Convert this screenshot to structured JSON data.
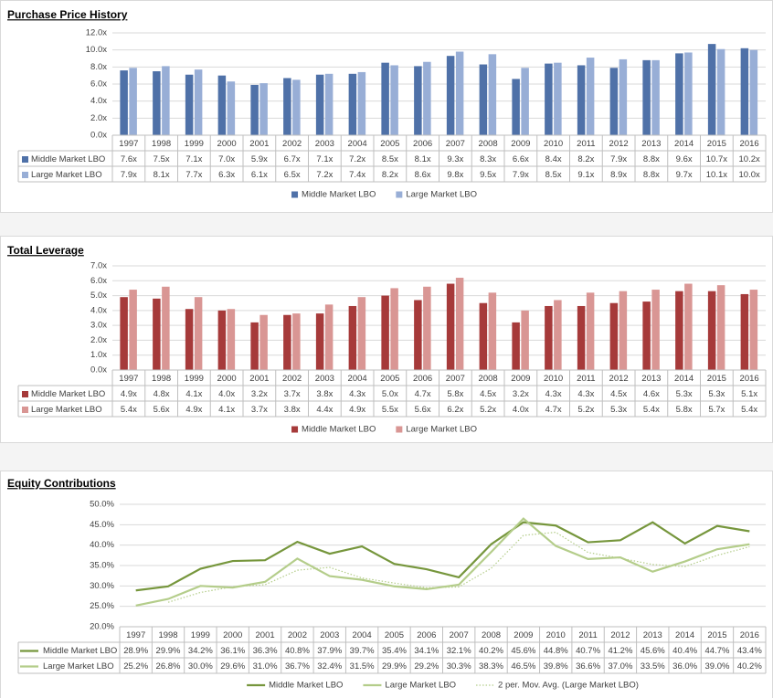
{
  "chart_data": [
    {
      "type": "bar",
      "title": "Purchase Price History",
      "categories": [
        "1997",
        "1998",
        "1999",
        "2000",
        "2001",
        "2002",
        "2003",
        "2004",
        "2005",
        "2006",
        "2007",
        "2008",
        "2009",
        "2010",
        "2011",
        "2012",
        "2013",
        "2014",
        "2015",
        "2016"
      ],
      "series": [
        {
          "name": "Middle Market LBO",
          "color": "#4f71a8",
          "values": [
            7.6,
            7.5,
            7.1,
            7.0,
            5.9,
            6.7,
            7.1,
            7.2,
            8.5,
            8.1,
            9.3,
            8.3,
            6.6,
            8.4,
            8.2,
            7.9,
            8.8,
            9.6,
            10.7,
            10.2
          ],
          "value_labels": [
            "7.6x",
            "7.5x",
            "7.1x",
            "7.0x",
            "5.9x",
            "6.7x",
            "7.1x",
            "7.2x",
            "8.5x",
            "8.1x",
            "9.3x",
            "8.3x",
            "6.6x",
            "8.4x",
            "8.2x",
            "7.9x",
            "8.8x",
            "9.6x",
            "10.7x",
            "10.2x"
          ]
        },
        {
          "name": "Large Market LBO",
          "color": "#98aed6",
          "values": [
            7.9,
            8.1,
            7.7,
            6.3,
            6.1,
            6.5,
            7.2,
            7.4,
            8.2,
            8.6,
            9.8,
            9.5,
            7.9,
            8.5,
            9.1,
            8.9,
            8.8,
            9.7,
            10.1,
            10.0
          ],
          "value_labels": [
            "7.9x",
            "8.1x",
            "7.7x",
            "6.3x",
            "6.1x",
            "6.5x",
            "7.2x",
            "7.4x",
            "8.2x",
            "8.6x",
            "9.8x",
            "9.5x",
            "7.9x",
            "8.5x",
            "9.1x",
            "8.9x",
            "8.8x",
            "9.7x",
            "10.1x",
            "10.0x"
          ]
        }
      ],
      "ylim": [
        0,
        12
      ],
      "yticks": [
        {
          "value": 0,
          "label": "0.0x"
        },
        {
          "value": 2,
          "label": "2.0x"
        },
        {
          "value": 4,
          "label": "4.0x"
        },
        {
          "value": 6,
          "label": "6.0x"
        },
        {
          "value": 8,
          "label": "8.0x"
        },
        {
          "value": 10,
          "label": "10.0x"
        },
        {
          "value": 12,
          "label": "12.0x"
        }
      ],
      "grid": true
    },
    {
      "type": "bar",
      "title": "Total Leverage",
      "categories": [
        "1997",
        "1998",
        "1999",
        "2000",
        "2001",
        "2002",
        "2003",
        "2004",
        "2005",
        "2006",
        "2007",
        "2008",
        "2009",
        "2010",
        "2011",
        "2012",
        "2013",
        "2014",
        "2015",
        "2016"
      ],
      "series": [
        {
          "name": "Middle Market LBO",
          "color": "#a63a3a",
          "values": [
            4.9,
            4.8,
            4.1,
            4.0,
            3.2,
            3.7,
            3.8,
            4.3,
            5.0,
            4.7,
            5.8,
            4.5,
            3.2,
            4.3,
            4.3,
            4.5,
            4.6,
            5.3,
            5.3,
            5.1
          ],
          "value_labels": [
            "4.9x",
            "4.8x",
            "4.1x",
            "4.0x",
            "3.2x",
            "3.7x",
            "3.8x",
            "4.3x",
            "5.0x",
            "4.7x",
            "5.8x",
            "4.5x",
            "3.2x",
            "4.3x",
            "4.3x",
            "4.5x",
            "4.6x",
            "5.3x",
            "5.3x",
            "5.1x"
          ]
        },
        {
          "name": "Large Market LBO",
          "color": "#d99694",
          "values": [
            5.4,
            5.6,
            4.9,
            4.1,
            3.7,
            3.8,
            4.4,
            4.9,
            5.5,
            5.6,
            6.2,
            5.2,
            4.0,
            4.7,
            5.2,
            5.3,
            5.4,
            5.8,
            5.7,
            5.4
          ],
          "value_labels": [
            "5.4x",
            "5.6x",
            "4.9x",
            "4.1x",
            "3.7x",
            "3.8x",
            "4.4x",
            "4.9x",
            "5.5x",
            "5.6x",
            "6.2x",
            "5.2x",
            "4.0x",
            "4.7x",
            "5.2x",
            "5.3x",
            "5.4x",
            "5.8x",
            "5.7x",
            "5.4x"
          ]
        }
      ],
      "ylim": [
        0,
        7
      ],
      "yticks": [
        {
          "value": 0,
          "label": "0.0x"
        },
        {
          "value": 1,
          "label": "1.0x"
        },
        {
          "value": 2,
          "label": "2.0x"
        },
        {
          "value": 3,
          "label": "3.0x"
        },
        {
          "value": 4,
          "label": "4.0x"
        },
        {
          "value": 5,
          "label": "5.0x"
        },
        {
          "value": 6,
          "label": "6.0x"
        },
        {
          "value": 7,
          "label": "7.0x"
        }
      ],
      "grid": true
    },
    {
      "type": "line",
      "title": "Equity Contributions",
      "categories": [
        "1997",
        "1998",
        "1999",
        "2000",
        "2001",
        "2002",
        "2003",
        "2004",
        "2005",
        "2006",
        "2007",
        "2008",
        "2009",
        "2010",
        "2011",
        "2012",
        "2013",
        "2014",
        "2015",
        "2016"
      ],
      "series": [
        {
          "name": "Middle Market LBO",
          "color": "#76963c",
          "line_style": "solid",
          "values": [
            28.9,
            29.9,
            34.2,
            36.1,
            36.3,
            40.8,
            37.9,
            39.7,
            35.4,
            34.1,
            32.1,
            40.2,
            45.6,
            44.8,
            40.7,
            41.2,
            45.6,
            40.4,
            44.7,
            43.4
          ],
          "value_labels": [
            "28.9%",
            "29.9%",
            "34.2%",
            "36.1%",
            "36.3%",
            "40.8%",
            "37.9%",
            "39.7%",
            "35.4%",
            "34.1%",
            "32.1%",
            "40.2%",
            "45.6%",
            "44.8%",
            "40.7%",
            "41.2%",
            "45.6%",
            "40.4%",
            "44.7%",
            "43.4%"
          ]
        },
        {
          "name": "Large Market LBO",
          "color": "#b4cd8a",
          "line_style": "solid",
          "values": [
            25.2,
            26.8,
            30.0,
            29.6,
            31.0,
            36.7,
            32.4,
            31.5,
            29.9,
            29.2,
            30.3,
            38.3,
            46.5,
            39.8,
            36.6,
            37.0,
            33.5,
            36.0,
            39.0,
            40.2
          ],
          "value_labels": [
            "25.2%",
            "26.8%",
            "30.0%",
            "29.6%",
            "31.0%",
            "36.7%",
            "32.4%",
            "31.5%",
            "29.9%",
            "29.2%",
            "30.3%",
            "38.3%",
            "46.5%",
            "39.8%",
            "36.6%",
            "37.0%",
            "33.5%",
            "36.0%",
            "39.0%",
            "40.2%"
          ]
        },
        {
          "name": "2 per. Mov. Avg. (Large Market LBO)",
          "color": "#b4cd8a",
          "line_style": "dotted",
          "values": [
            null,
            26.0,
            28.4,
            29.8,
            30.3,
            33.85,
            34.55,
            31.95,
            30.7,
            29.55,
            29.75,
            34.3,
            42.4,
            43.15,
            38.2,
            36.8,
            35.25,
            34.75,
            37.5,
            39.6
          ]
        }
      ],
      "ylim": [
        20,
        50
      ],
      "yticks": [
        {
          "value": 20,
          "label": "20.0%"
        },
        {
          "value": 25,
          "label": "25.0%"
        },
        {
          "value": 30,
          "label": "30.0%"
        },
        {
          "value": 35,
          "label": "35.0%"
        },
        {
          "value": 40,
          "label": "40.0%"
        },
        {
          "value": 45,
          "label": "45.0%"
        },
        {
          "value": 50,
          "label": "50.0%"
        }
      ],
      "grid": true
    }
  ]
}
